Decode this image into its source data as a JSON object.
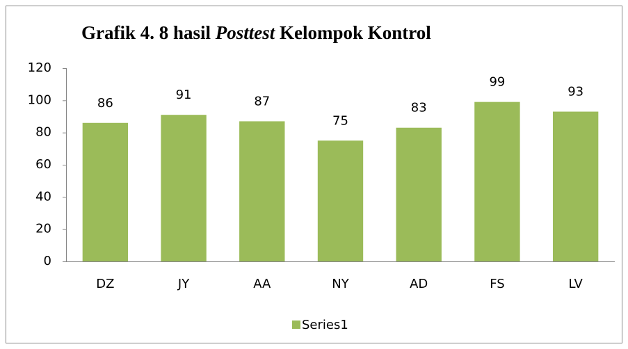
{
  "chart_data": {
    "type": "bar",
    "title": [
      "Grafik 4. 8 hasil ",
      "Posttest",
      " Kelompok Kontrol"
    ],
    "categories": [
      "DZ",
      "JY",
      "AA",
      "NY",
      "AD",
      "FS",
      "LV"
    ],
    "series": [
      {
        "name": "Series1",
        "color": "#9bbb59",
        "values": [
          86,
          91,
          87,
          75,
          83,
          99,
          93
        ]
      }
    ],
    "ylim": [
      0,
      120
    ],
    "yticks": [
      0,
      20,
      40,
      60,
      80,
      100,
      120
    ],
    "grid": false,
    "legend": "bottom"
  }
}
